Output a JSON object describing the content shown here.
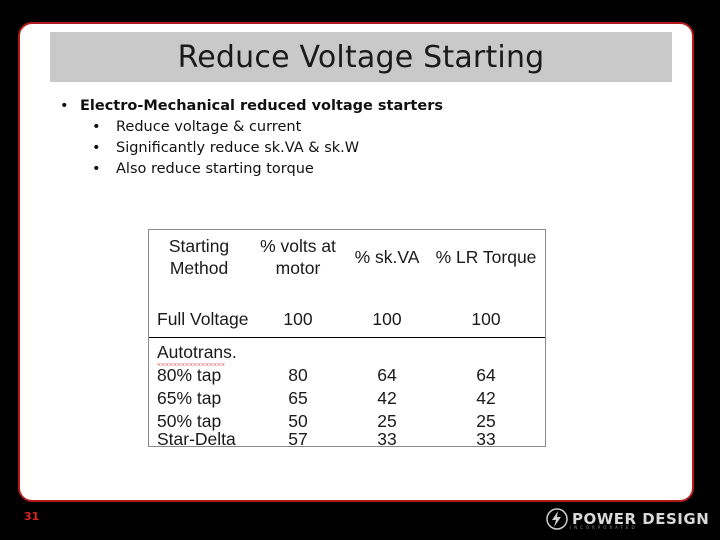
{
  "title": "Reduce Voltage Starting",
  "bullets": {
    "main": "Electro-Mechanical reduced voltage starters",
    "sub": [
      "Reduce voltage & current",
      "Significantly reduce sk.VA & sk.W",
      "Also reduce starting torque"
    ]
  },
  "table": {
    "headers": {
      "method_line1": "Starting",
      "method_line2": "Method",
      "volts_line1": "% volts at",
      "volts_line2": "motor",
      "skva": "% sk.VA",
      "torque": "% LR Torque"
    },
    "rows": [
      {
        "method": "Full Voltage",
        "volts": "100",
        "skva": "100",
        "torque": "100"
      },
      {
        "method": "Autotrans.",
        "volts": "",
        "skva": "",
        "torque": ""
      },
      {
        "method": "80% tap",
        "volts": "80",
        "skva": "64",
        "torque": "64"
      },
      {
        "method": "65% tap",
        "volts": "65",
        "skva": "42",
        "torque": "42"
      },
      {
        "method": "50% tap",
        "volts": "50",
        "skva": "25",
        "torque": "25"
      },
      {
        "method": "Star-Delta",
        "volts": "57",
        "skva": "33",
        "torque": "33"
      }
    ]
  },
  "footer": {
    "page_number": "31",
    "logo_text": "POWER DESIGN",
    "logo_sub": "INCORPORATED",
    "logo_icon": "lightning-bolt-icon"
  },
  "colors": {
    "frame_border": "#b11a1a",
    "title_bar": "#c9c9c9",
    "page_number": "#dd2222"
  }
}
